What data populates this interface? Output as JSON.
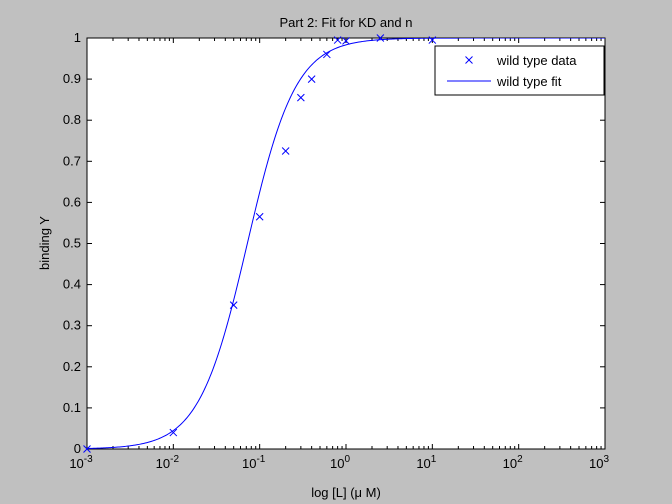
{
  "chart_data": {
    "type": "scatter",
    "title": "Part 2: Fit for KD and n",
    "xlabel": "log [L] (μ M)",
    "ylabel": "binding Y",
    "xscale": "log",
    "xlim": [
      0.001,
      1000
    ],
    "ylim": [
      0,
      1
    ],
    "x_ticks": [
      {
        "base": "10",
        "exp": "-3",
        "value": 0.001
      },
      {
        "base": "10",
        "exp": "-2",
        "value": 0.01
      },
      {
        "base": "10",
        "exp": "-1",
        "value": 0.1
      },
      {
        "base": "10",
        "exp": "0",
        "value": 1
      },
      {
        "base": "10",
        "exp": "1",
        "value": 10
      },
      {
        "base": "10",
        "exp": "2",
        "value": 100
      },
      {
        "base": "10",
        "exp": "3",
        "value": 1000
      }
    ],
    "y_ticks": [
      "0",
      "0.1",
      "0.2",
      "0.3",
      "0.4",
      "0.5",
      "0.6",
      "0.7",
      "0.8",
      "0.9",
      "1"
    ],
    "grid": false,
    "legend_position": "top-right",
    "series": [
      {
        "name": "wild type data",
        "marker": "x",
        "color": "#0000ff",
        "x": [
          0.001,
          0.01,
          0.05,
          0.1,
          0.2,
          0.3,
          0.4,
          0.6,
          0.8,
          1,
          2.5,
          10
        ],
        "y": [
          0.0,
          0.04,
          0.35,
          0.565,
          0.725,
          0.855,
          0.9,
          0.96,
          0.995,
          0.993,
          1.0,
          0.995
        ]
      },
      {
        "name": "wild type fit",
        "style": "line",
        "color": "#0000ff",
        "model": "hill",
        "kd": 0.072,
        "n": 1.55
      }
    ]
  }
}
